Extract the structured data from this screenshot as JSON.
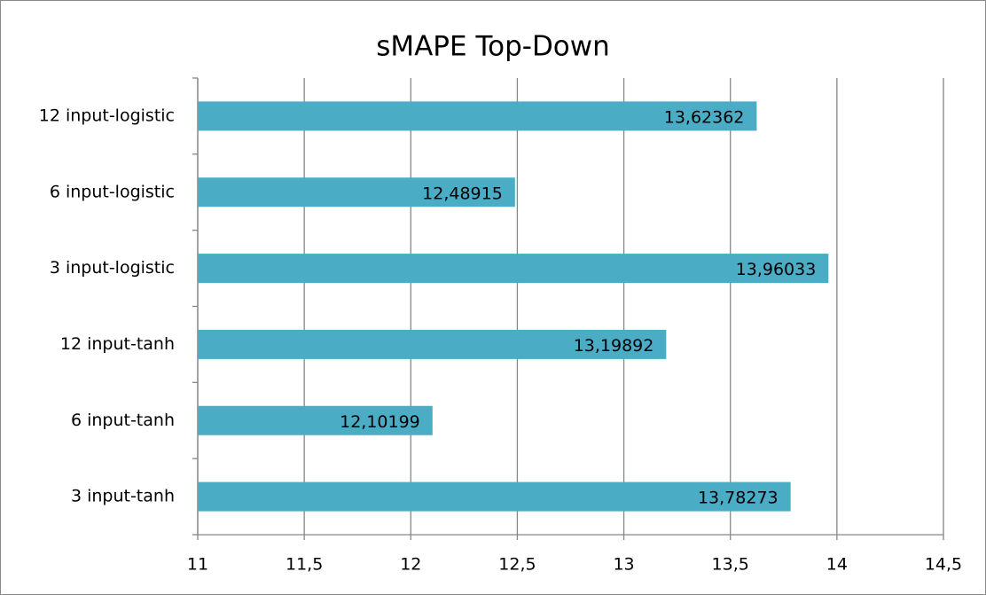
{
  "chart_data": {
    "type": "bar",
    "orientation": "horizontal",
    "title": "sMAPE Top-Down",
    "categories": [
      "12 input-logistic",
      "6 input-logistic",
      "3 input-logistic",
      "12 input-tanh",
      "6 input-tanh",
      "3 input-tanh"
    ],
    "values": [
      13.62362,
      12.48915,
      13.96033,
      13.19892,
      12.10199,
      13.78273
    ],
    "value_labels": [
      "13,62362",
      "12,48915",
      "13,96033",
      "13,19892",
      "12,10199",
      "13,78273"
    ],
    "color": "#4bacc6",
    "xlim": [
      11,
      14.5
    ],
    "xticks": [
      11,
      {
        "value": 11.5,
        "label": "11,5"
      },
      12,
      {
        "value": 12.5,
        "label": "12,5"
      },
      13,
      {
        "value": 13.5,
        "label": "13,5"
      },
      14,
      {
        "value": 14.5,
        "label": "14,5"
      }
    ],
    "grid": true
  }
}
